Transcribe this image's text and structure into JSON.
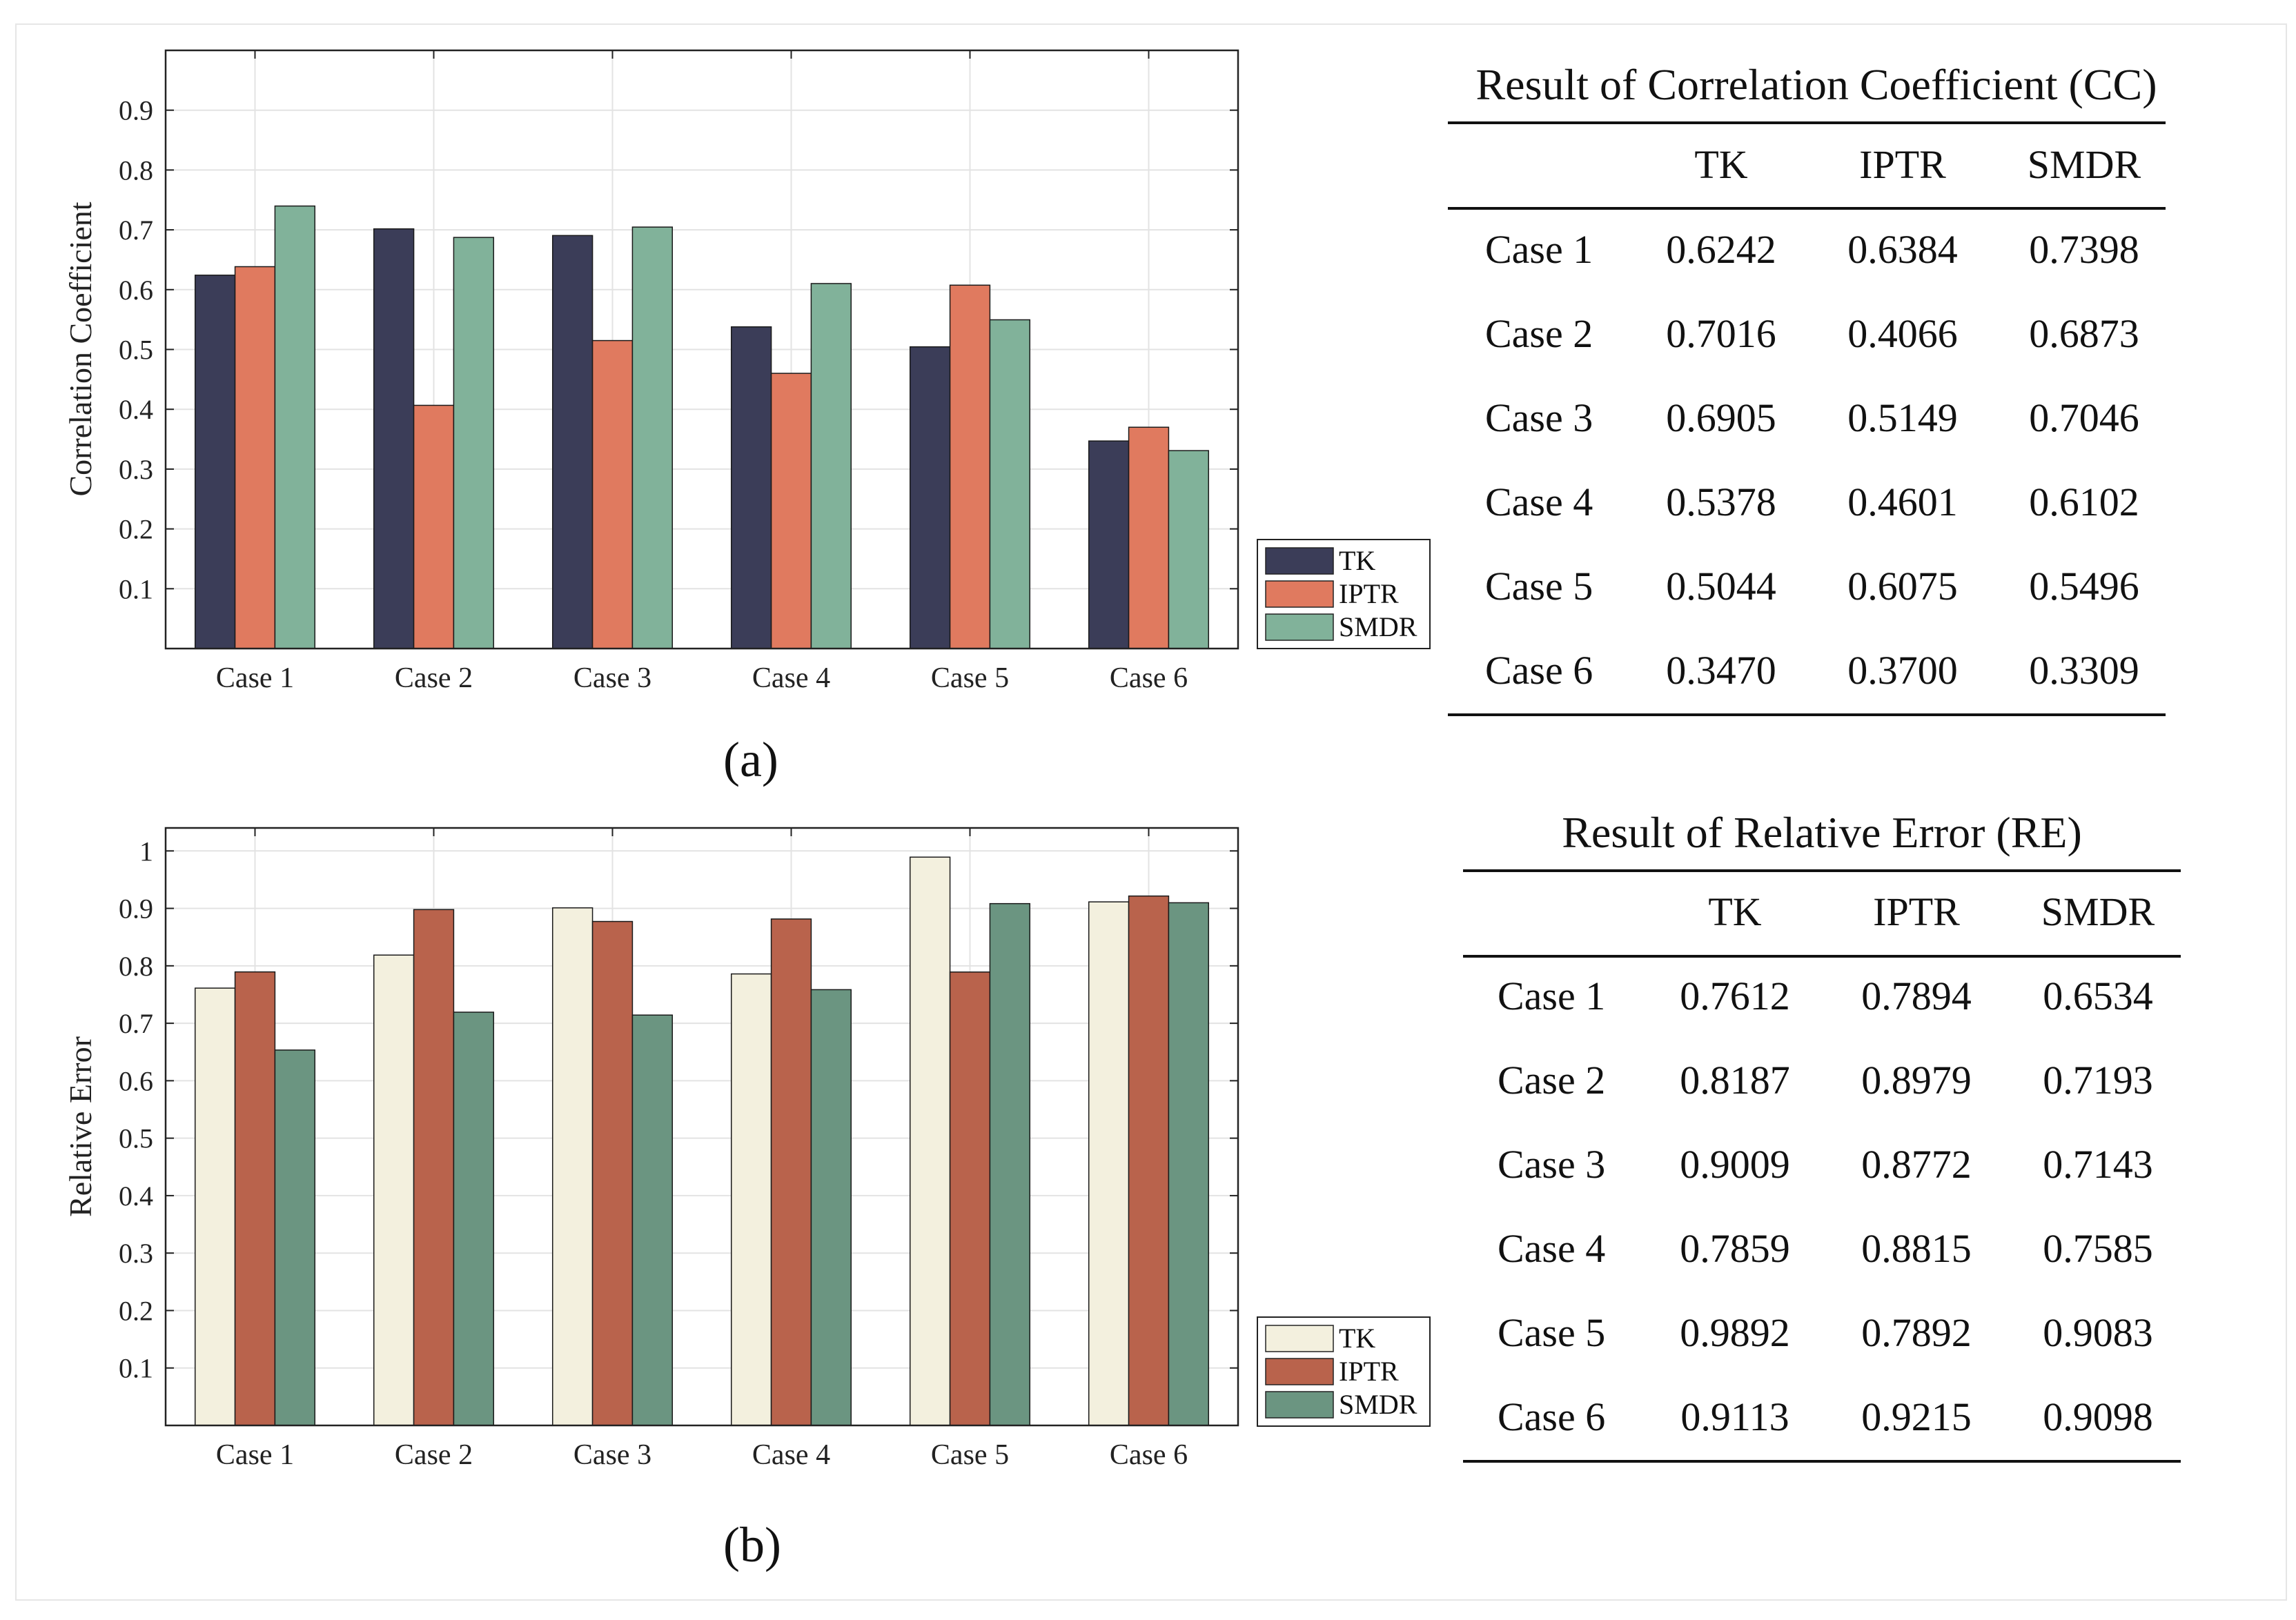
{
  "chart_data": [
    {
      "type": "bar",
      "panel": "(a)",
      "ylabel": "Correlation Coefficient",
      "xlabel": "",
      "ylim": [
        0,
        1
      ],
      "yticks": [
        "0.1",
        "0.2",
        "0.3",
        "0.4",
        "0.5",
        "0.6",
        "0.7",
        "0.8",
        "0.9"
      ],
      "grid": true,
      "legend_position": "bottom-right-outside",
      "categories": [
        "Case 1",
        "Case 2",
        "Case 3",
        "Case 4",
        "Case 5",
        "Case 6"
      ],
      "series": [
        {
          "name": "TK",
          "color": "#3b3d58",
          "values": [
            0.6242,
            0.7016,
            0.6905,
            0.5378,
            0.5044,
            0.347
          ]
        },
        {
          "name": "IPTR",
          "color": "#e07a5f",
          "values": [
            0.6384,
            0.4066,
            0.5149,
            0.4601,
            0.6075,
            0.37
          ]
        },
        {
          "name": "SMDR",
          "color": "#81b29a",
          "values": [
            0.7398,
            0.6873,
            0.7046,
            0.6102,
            0.5496,
            0.3309
          ]
        }
      ]
    },
    {
      "type": "bar",
      "panel": "(b)",
      "ylabel": "Relative Error",
      "xlabel": "",
      "ylim": [
        0,
        1.04
      ],
      "yticks": [
        "0.1",
        "0.2",
        "0.3",
        "0.4",
        "0.5",
        "0.6",
        "0.7",
        "0.8",
        "0.9",
        "1"
      ],
      "grid": true,
      "legend_position": "bottom-right-outside",
      "categories": [
        "Case 1",
        "Case 2",
        "Case 3",
        "Case 4",
        "Case 5",
        "Case 6"
      ],
      "series": [
        {
          "name": "TK",
          "color": "#f3f0de",
          "values": [
            0.7612,
            0.8187,
            0.9009,
            0.7859,
            0.9892,
            0.9113
          ]
        },
        {
          "name": "IPTR",
          "color": "#b9634c",
          "values": [
            0.7894,
            0.8979,
            0.8772,
            0.8815,
            0.7892,
            0.9215
          ]
        },
        {
          "name": "SMDR",
          "color": "#6b9581",
          "values": [
            0.6534,
            0.7193,
            0.7143,
            0.7585,
            0.9083,
            0.9098
          ]
        }
      ]
    }
  ],
  "captions": {
    "a": "(a)",
    "b": "(b)"
  },
  "tables": [
    {
      "title": "Result of Correlation Coefficient (CC)",
      "columns": [
        "TK",
        "IPTR",
        "SMDR"
      ],
      "rows": [
        {
          "label": "Case 1",
          "values": [
            "0.6242",
            "0.6384",
            "0.7398"
          ]
        },
        {
          "label": "Case 2",
          "values": [
            "0.7016",
            "0.4066",
            "0.6873"
          ]
        },
        {
          "label": "Case 3",
          "values": [
            "0.6905",
            "0.5149",
            "0.7046"
          ]
        },
        {
          "label": "Case 4",
          "values": [
            "0.5378",
            "0.4601",
            "0.6102"
          ]
        },
        {
          "label": "Case 5",
          "values": [
            "0.5044",
            "0.6075",
            "0.5496"
          ]
        },
        {
          "label": "Case 6",
          "values": [
            "0.3470",
            "0.3700",
            "0.3309"
          ]
        }
      ]
    },
    {
      "title": "Result of Relative Error (RE)",
      "columns": [
        "TK",
        "IPTR",
        "SMDR"
      ],
      "rows": [
        {
          "label": "Case 1",
          "values": [
            "0.7612",
            "0.7894",
            "0.6534"
          ]
        },
        {
          "label": "Case 2",
          "values": [
            "0.8187",
            "0.8979",
            "0.7193"
          ]
        },
        {
          "label": "Case 3",
          "values": [
            "0.9009",
            "0.8772",
            "0.7143"
          ]
        },
        {
          "label": "Case 4",
          "values": [
            "0.7859",
            "0.8815",
            "0.7585"
          ]
        },
        {
          "label": "Case 5",
          "values": [
            "0.9892",
            "0.7892",
            "0.9083"
          ]
        },
        {
          "label": "Case 6",
          "values": [
            "0.9113",
            "0.9215",
            "0.9098"
          ]
        }
      ]
    }
  ]
}
